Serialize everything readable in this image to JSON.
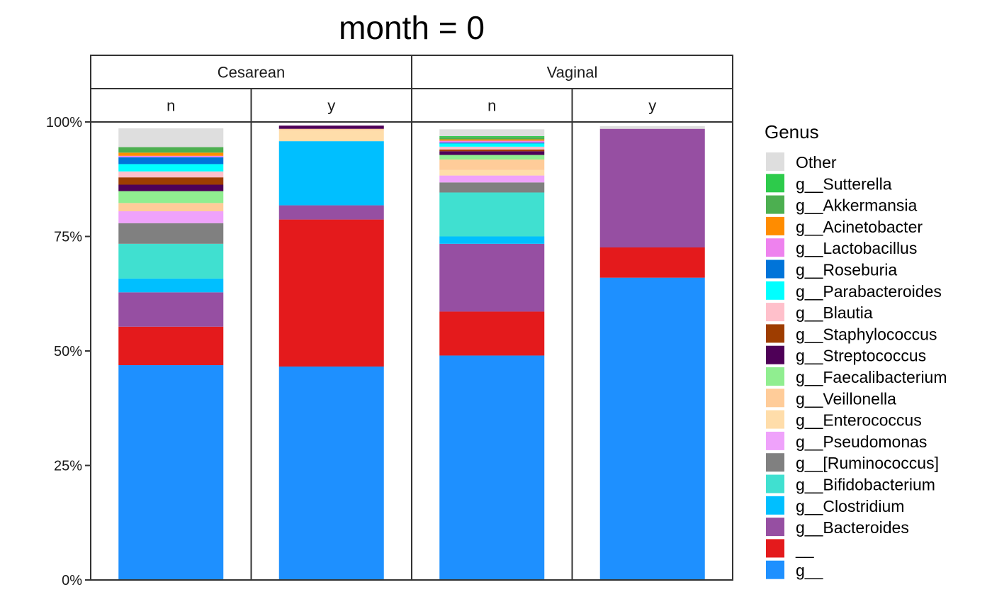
{
  "chart_data": {
    "type": "bar",
    "stacked": true,
    "title": "month = 0",
    "facet_rows": [
      "Cesarean",
      "Vaginal"
    ],
    "facet_cols": [
      "n",
      "y"
    ],
    "panels": [
      {
        "group": "Cesarean",
        "sub": "n"
      },
      {
        "group": "Cesarean",
        "sub": "y"
      },
      {
        "group": "Vaginal",
        "sub": "n"
      },
      {
        "group": "Vaginal",
        "sub": "y"
      }
    ],
    "y_ticks": [
      "0%",
      "25%",
      "50%",
      "75%",
      "100%"
    ],
    "ylim": [
      0,
      100
    ],
    "legend_title": "Genus",
    "legend_position": "right",
    "series": [
      {
        "name": "Other",
        "color": "#DEDEDE",
        "values": [
          4.1,
          0.0,
          1.5,
          0.6
        ]
      },
      {
        "name": "g__Sutterella",
        "color": "#2DCB4B",
        "values": [
          0.0,
          0.0,
          0.2,
          0.0
        ]
      },
      {
        "name": "g__Akkermansia",
        "color": "#4CAF50",
        "values": [
          1.2,
          0.0,
          0.5,
          0.0
        ]
      },
      {
        "name": "g__Acinetobacter",
        "color": "#FF8C00",
        "values": [
          0.7,
          0.0,
          0.3,
          0.0
        ]
      },
      {
        "name": "g__Lactobacillus",
        "color": "#EE82EE",
        "values": [
          0.3,
          0.0,
          0.4,
          0.0
        ]
      },
      {
        "name": "g__Roseburia",
        "color": "#0074D9",
        "values": [
          1.5,
          0.0,
          0.2,
          0.0
        ]
      },
      {
        "name": "g__Parabacteroides",
        "color": "#00FFFF",
        "values": [
          1.6,
          0.0,
          0.7,
          0.0
        ]
      },
      {
        "name": "g__Blautia",
        "color": "#FFC0CB",
        "values": [
          1.3,
          0.0,
          0.6,
          0.0
        ]
      },
      {
        "name": "g__Staphylococcus",
        "color": "#9E3D00",
        "values": [
          1.6,
          0.0,
          0.4,
          0.0
        ]
      },
      {
        "name": "g__Streptococcus",
        "color": "#4E0057",
        "values": [
          1.4,
          0.7,
          0.8,
          0.0
        ]
      },
      {
        "name": "g__Faecalibacterium",
        "color": "#90EE90",
        "values": [
          2.6,
          0.0,
          1.0,
          0.0
        ]
      },
      {
        "name": "g__Veillonella",
        "color": "#FFCC99",
        "values": [
          1.8,
          0.3,
          2.3,
          0.0
        ]
      },
      {
        "name": "g__Enterococcus",
        "color": "#FFDDAA",
        "values": [
          0.0,
          2.4,
          1.2,
          0.0
        ]
      },
      {
        "name": "g__Pseudomonas",
        "color": "#EFA2FB",
        "values": [
          2.6,
          0.0,
          1.5,
          0.0
        ]
      },
      {
        "name": "g__[Ruminococcus]",
        "color": "#808080",
        "values": [
          4.5,
          0.0,
          2.2,
          0.0
        ]
      },
      {
        "name": "g__Bifidobacterium",
        "color": "#40E0D0",
        "values": [
          7.6,
          0.0,
          9.6,
          0.0
        ]
      },
      {
        "name": "g__Clostridium",
        "color": "#00BFFF",
        "values": [
          3.0,
          14.0,
          1.6,
          0.0
        ]
      },
      {
        "name": "g__Bacteroides",
        "color": "#964FA2",
        "values": [
          7.5,
          3.1,
          14.8,
          25.9
        ]
      },
      {
        "name": "__",
        "color": "#E41A1C",
        "values": [
          8.4,
          32.1,
          9.6,
          6.6
        ]
      },
      {
        "name": "g__",
        "color": "#1E90FF",
        "values": [
          46.9,
          46.6,
          49.0,
          66.0
        ]
      }
    ]
  }
}
